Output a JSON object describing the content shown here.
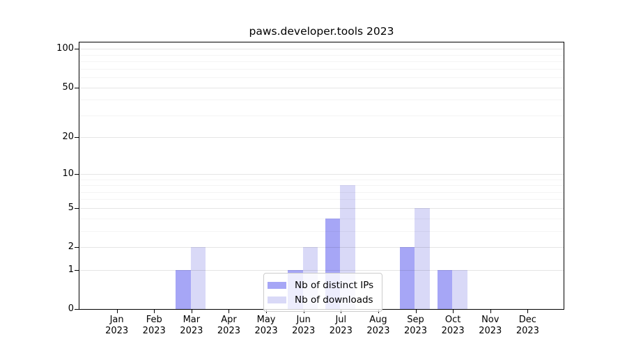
{
  "chart_data": {
    "type": "bar",
    "title": "paws.developer.tools 2023",
    "categories": [
      "Jan 2023",
      "Feb 2023",
      "Mar 2023",
      "Apr 2023",
      "May 2023",
      "Jun 2023",
      "Jul 2023",
      "Aug 2023",
      "Sep 2023",
      "Oct 2023",
      "Nov 2023",
      "Dec 2023"
    ],
    "series": [
      {
        "name": "Nb of distinct IPs",
        "color": "#a6a6f6",
        "values": [
          null,
          null,
          1,
          null,
          null,
          1,
          4,
          null,
          2,
          1,
          null,
          null
        ]
      },
      {
        "name": "Nb of downloads",
        "color": "#d9d9f7",
        "values": [
          null,
          null,
          2,
          null,
          null,
          2,
          8,
          null,
          5,
          1,
          null,
          null
        ]
      }
    ],
    "yscale": "log10(1+x)",
    "y_major_ticks": [
      0,
      1,
      2,
      5,
      10,
      20,
      50,
      100
    ],
    "y_minor_ticks": [
      3,
      4,
      6,
      7,
      8,
      9,
      30,
      40,
      60,
      70,
      80,
      90
    ],
    "ylim": [
      0,
      113
    ],
    "xlabel": "",
    "ylabel": "",
    "grid": "horizontal",
    "legend_position": "lower center",
    "colors": {
      "background": "#ffffff",
      "spine": "#000000",
      "grid_major": "rgba(0,0,0,0.10)",
      "grid_minor": "rgba(0,0,0,0.045)",
      "legend_border": "#cccccc"
    }
  }
}
